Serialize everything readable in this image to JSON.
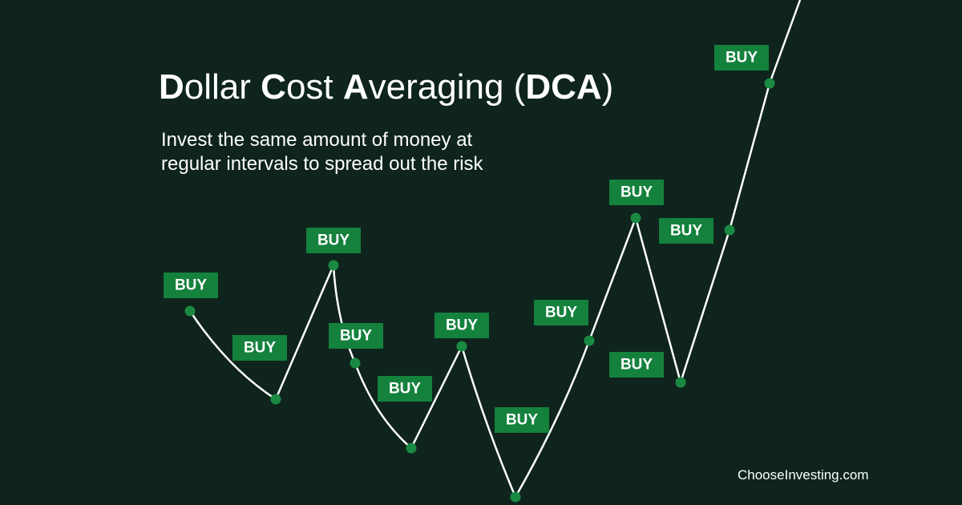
{
  "title": {
    "parts": [
      "D",
      "ollar ",
      "C",
      "ost ",
      "A",
      "veraging (",
      "DCA",
      ")"
    ]
  },
  "subtitle": {
    "lines": [
      "Invest the same amount of money at",
      "regular intervals to spread out the risk"
    ]
  },
  "buy_labels": [
    "BUY",
    "BUY",
    "BUY",
    "BUY",
    "BUY",
    "BUY",
    "BUY",
    "BUY",
    "BUY",
    "BUY",
    "BUY",
    "BUY"
  ],
  "footer": {
    "site": "ChooseInvesting.com"
  }
}
